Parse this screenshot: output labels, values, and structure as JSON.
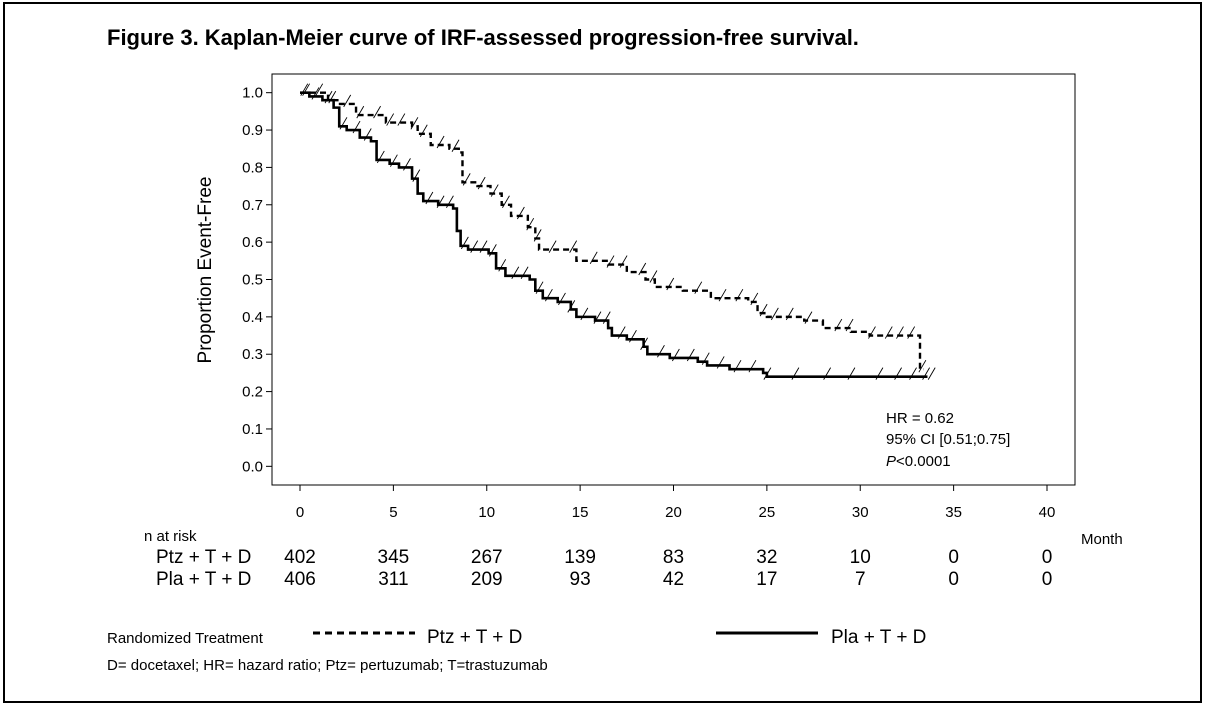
{
  "figure_title": "Figure 3. Kaplan-Meier curve of IRF-assessed progression-free survival.",
  "stats": {
    "hr": "HR = 0.62",
    "ci": "95% CI [0.51;0.75]",
    "p_letter": "P",
    "p_rest": "<0.0001"
  },
  "risk_table": {
    "header": "n at risk",
    "unit_label": "Month",
    "rows": [
      {
        "label": "Ptz + T + D",
        "values": [
          "402",
          "345",
          "267",
          "139",
          "83",
          "32",
          "10",
          "0",
          "0"
        ]
      },
      {
        "label": "Pla + T + D",
        "values": [
          "406",
          "311",
          "209",
          "93",
          "42",
          "17",
          "7",
          "0",
          "0"
        ]
      }
    ]
  },
  "legend": {
    "title": "Randomized Treatment",
    "items": [
      {
        "label": "Ptz + T + D",
        "style": "dashed"
      },
      {
        "label": "Pla + T + D",
        "style": "solid"
      }
    ]
  },
  "footnote": "D= docetaxel; HR= hazard ratio; Ptz= pertuzumab; T=trastuzumab",
  "chart_data": {
    "type": "line",
    "title": "",
    "xlabel": "",
    "ylabel": "Proportion Event-Free",
    "xlim": [
      -1.5,
      41.5
    ],
    "ylim": [
      -0.05,
      1.05
    ],
    "xticks": [
      "0",
      "5",
      "10",
      "15",
      "20",
      "25",
      "30",
      "35",
      "40"
    ],
    "yticks": [
      "0.0",
      "0.1",
      "0.2",
      "0.3",
      "0.4",
      "0.5",
      "0.6",
      "0.7",
      "0.8",
      "0.9",
      "1.0"
    ],
    "grid": false,
    "legend_position": "bottom",
    "series": [
      {
        "name": "Ptz + T + D",
        "style": "dashed",
        "color": "#000000",
        "steps": [
          [
            0,
            1.0
          ],
          [
            1.5,
            0.98
          ],
          [
            2,
            0.97
          ],
          [
            3,
            0.94
          ],
          [
            4.2,
            0.94
          ],
          [
            4.6,
            0.92
          ],
          [
            6,
            0.91
          ],
          [
            6.3,
            0.89
          ],
          [
            7,
            0.86
          ],
          [
            8,
            0.85
          ],
          [
            8.5,
            0.84
          ],
          [
            8.7,
            0.76
          ],
          [
            9.5,
            0.75
          ],
          [
            10.2,
            0.73
          ],
          [
            10.8,
            0.7
          ],
          [
            11.3,
            0.67
          ],
          [
            12.2,
            0.64
          ],
          [
            12.6,
            0.61
          ],
          [
            12.8,
            0.58
          ],
          [
            14.8,
            0.55
          ],
          [
            16.5,
            0.54
          ],
          [
            17.5,
            0.52
          ],
          [
            18.5,
            0.5
          ],
          [
            19,
            0.48
          ],
          [
            20.5,
            0.47
          ],
          [
            22,
            0.45
          ],
          [
            24,
            0.44
          ],
          [
            24.5,
            0.41
          ],
          [
            25,
            0.4
          ],
          [
            27,
            0.39
          ],
          [
            28,
            0.37
          ],
          [
            29.5,
            0.36
          ],
          [
            30.5,
            0.35
          ],
          [
            33.2,
            0.35
          ],
          [
            33.2,
            0.26
          ]
        ],
        "end_x": 33.4,
        "censor_x": [
          0.3,
          1.0,
          1.7,
          2.5,
          3.2,
          4.1,
          4.8,
          5.4,
          6.1,
          6.6,
          7.5,
          8.3,
          8.9,
          9.7,
          10.4,
          11.0,
          11.8,
          12.3,
          12.7,
          13.5,
          14.6,
          15.7,
          16.6,
          17.3,
          18.3,
          18.9,
          19.8,
          21.3,
          22.6,
          23.5,
          24.3,
          24.8,
          25.4,
          26.2,
          27.2,
          28.8,
          29.4,
          30.6,
          31.5,
          32.1,
          32.7,
          33.3
        ]
      },
      {
        "name": "Pla + T + D",
        "style": "solid",
        "color": "#000000",
        "steps": [
          [
            0,
            1.0
          ],
          [
            0.5,
            0.99
          ],
          [
            1.2,
            0.98
          ],
          [
            1.8,
            0.96
          ],
          [
            2.1,
            0.91
          ],
          [
            2.5,
            0.9
          ],
          [
            3.2,
            0.88
          ],
          [
            3.8,
            0.87
          ],
          [
            4.1,
            0.82
          ],
          [
            4.8,
            0.81
          ],
          [
            5.3,
            0.8
          ],
          [
            6.0,
            0.77
          ],
          [
            6.3,
            0.73
          ],
          [
            6.6,
            0.71
          ],
          [
            7.4,
            0.7
          ],
          [
            8.2,
            0.69
          ],
          [
            8.4,
            0.63
          ],
          [
            8.6,
            0.59
          ],
          [
            9.0,
            0.58
          ],
          [
            10.1,
            0.57
          ],
          [
            10.5,
            0.53
          ],
          [
            11.0,
            0.51
          ],
          [
            12.3,
            0.5
          ],
          [
            12.6,
            0.47
          ],
          [
            13,
            0.45
          ],
          [
            13.8,
            0.44
          ],
          [
            14.5,
            0.42
          ],
          [
            14.8,
            0.4
          ],
          [
            15.8,
            0.39
          ],
          [
            16.5,
            0.37
          ],
          [
            16.7,
            0.35
          ],
          [
            17.5,
            0.34
          ],
          [
            18.4,
            0.32
          ],
          [
            18.6,
            0.3
          ],
          [
            19.8,
            0.29
          ],
          [
            21.3,
            0.28
          ],
          [
            21.8,
            0.27
          ],
          [
            23.0,
            0.26
          ],
          [
            24.8,
            0.25
          ],
          [
            25.0,
            0.24
          ],
          [
            33.5,
            0.24
          ]
        ],
        "end_x": 33.6,
        "censor_x": [
          0.2,
          0.8,
          1.5,
          2.3,
          3.0,
          3.6,
          4.3,
          5.0,
          5.7,
          6.2,
          6.9,
          7.5,
          8.0,
          8.8,
          9.3,
          9.8,
          10.3,
          10.8,
          11.5,
          12.0,
          12.8,
          13.3,
          14.0,
          14.5,
          15.2,
          15.9,
          16.4,
          17.2,
          17.8,
          18.4,
          19.3,
          20.1,
          20.9,
          21.7,
          22.5,
          23.4,
          24.2,
          25.0,
          26.5,
          28.2,
          29.5,
          31.0,
          32.0,
          32.8,
          33.5,
          33.8
        ]
      }
    ]
  }
}
